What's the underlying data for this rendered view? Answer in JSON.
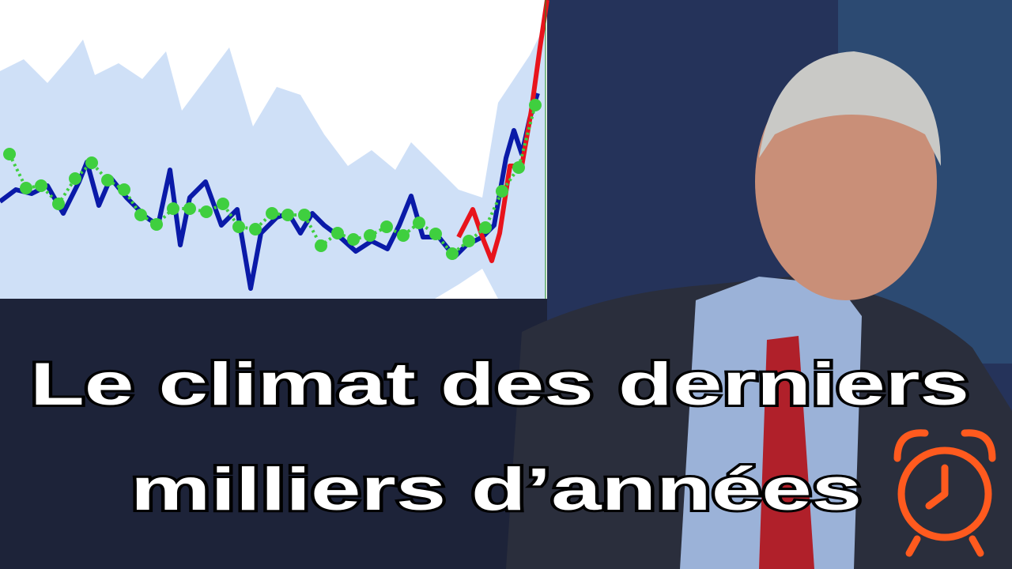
{
  "title": {
    "line1": "Le climat des derniers",
    "line2": "milliers d’années"
  },
  "chart_data": {
    "type": "line",
    "xlim": [
      0,
      692
    ],
    "ylim": [
      0,
      378
    ],
    "band": {
      "color": "#cfe0f7",
      "x": [
        0,
        30,
        60,
        90,
        105,
        120,
        150,
        180,
        210,
        230,
        260,
        290,
        320,
        350,
        380,
        410,
        440,
        470,
        500,
        520,
        550,
        580,
        610,
        630,
        650,
        670,
        690
      ],
      "upper": [
        288,
        303,
        273,
        308,
        328,
        283,
        298,
        278,
        313,
        238,
        278,
        318,
        218,
        268,
        258,
        208,
        168,
        188,
        163,
        198,
        168,
        138,
        128,
        248,
        278,
        308,
        348
      ],
      "lower": [
        0,
        0,
        0,
        0,
        0,
        0,
        0,
        0,
        0,
        0,
        0,
        0,
        0,
        0,
        0,
        0,
        0,
        0,
        0,
        0,
        0,
        18,
        38,
        0,
        0,
        0,
        0
      ]
    },
    "series": [
      {
        "color": "#0a1aa8",
        "x": [
          0,
          20,
          40,
          60,
          80,
          100,
          110,
          125,
          140,
          160,
          185,
          200,
          215,
          228,
          240,
          260,
          280,
          300,
          317,
          330,
          350,
          365,
          380,
          395,
          410,
          430,
          450,
          470,
          490,
          505,
          520,
          535,
          555,
          575,
          590,
          610,
          625,
          640,
          650,
          660,
          670,
          680
        ],
        "values": [
          123,
          138,
          133,
          143,
          108,
          148,
          173,
          118,
          153,
          128,
          103,
          93,
          163,
          68,
          128,
          148,
          93,
          113,
          13,
          83,
          103,
          108,
          83,
          108,
          93,
          78,
          60,
          73,
          63,
          93,
          130,
          78,
          78,
          53,
          68,
          78,
          93,
          178,
          213,
          183,
          228,
          260
        ]
      },
      {
        "color": "#e8141c",
        "x": [
          580,
          598,
          612,
          622,
          632,
          645,
          660,
          672,
          683,
          692
        ],
        "values": [
          78,
          113,
          73,
          48,
          83,
          168,
          168,
          238,
          318,
          378
        ]
      },
      {
        "color": "#3fcf3f",
        "x": [
          12,
          33,
          52,
          74,
          95,
          116,
          136,
          157,
          178,
          198,
          219,
          240,
          261,
          282,
          302,
          323,
          344,
          364,
          385,
          406,
          427,
          447,
          468,
          489,
          510,
          530,
          551,
          572,
          593,
          614,
          635,
          656,
          677
        ],
        "values": [
          183,
          140,
          143,
          120,
          152,
          172,
          150,
          138,
          106,
          94,
          114,
          114,
          110,
          120,
          91,
          88,
          108,
          106,
          106,
          67,
          83,
          75,
          80,
          91,
          80,
          96,
          82,
          57,
          73,
          90,
          136,
          166,
          245
        ]
      }
    ]
  }
}
